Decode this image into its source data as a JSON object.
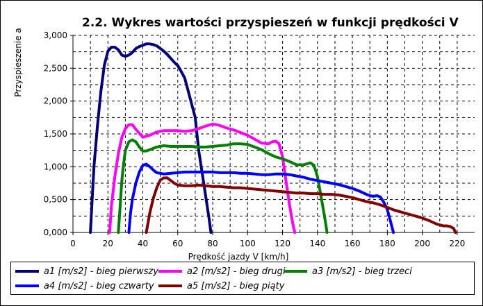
{
  "chart_data": {
    "type": "line",
    "title": "2.2. Wykres wartości przyspieszeń w funkcji prędkości V",
    "ylabel": "Przyspieszenie a",
    "xlabel": "Prędkość jazdy V [km/h]",
    "xlim": [
      0,
      230
    ],
    "ylim": [
      0,
      3
    ],
    "xticks": [
      0,
      20,
      40,
      60,
      80,
      100,
      120,
      140,
      160,
      180,
      200,
      220
    ],
    "yticks": [
      0,
      0.5,
      1,
      1.5,
      2,
      2.5,
      3
    ],
    "xtick_labels": [
      "0",
      "20",
      "40",
      "60",
      "80",
      "100",
      "120",
      "140",
      "160",
      "180",
      "200",
      "220"
    ],
    "ytick_labels": [
      "0,000",
      "0,500",
      "1,000",
      "1,500",
      "2,000",
      "2,500",
      "3,000"
    ],
    "grid": true,
    "legend_position": "bottom",
    "series": [
      {
        "name": "a1 [m/s2] - bieg pierwszy",
        "color": "#000080",
        "x": [
          10,
          11,
          12,
          14,
          16,
          18,
          20,
          22,
          24,
          26,
          28,
          30,
          32,
          34,
          36,
          38,
          40,
          42,
          44,
          46,
          48,
          50,
          52,
          54,
          56,
          58,
          60,
          62,
          64,
          66,
          68,
          70,
          71,
          72,
          74,
          76,
          78,
          79
        ],
        "y": [
          0,
          0.5,
          1.0,
          1.62,
          2.15,
          2.55,
          2.76,
          2.82,
          2.82,
          2.78,
          2.7,
          2.68,
          2.7,
          2.74,
          2.8,
          2.83,
          2.85,
          2.87,
          2.87,
          2.86,
          2.84,
          2.8,
          2.76,
          2.71,
          2.65,
          2.59,
          2.54,
          2.45,
          2.35,
          2.15,
          1.95,
          1.75,
          1.5,
          1.25,
          0.9,
          0.55,
          0.2,
          0
        ]
      },
      {
        "name": "a2 [m/s2] - bieg drugi",
        "color": "#ff00ff",
        "x": [
          21,
          22,
          24,
          26,
          28,
          30,
          32,
          34,
          36,
          40,
          44,
          48,
          52,
          56,
          60,
          64,
          68,
          72,
          76,
          80,
          84,
          88,
          92,
          96,
          100,
          104,
          108,
          112,
          114,
          116,
          118,
          120,
          122,
          124,
          126,
          127
        ],
        "y": [
          0,
          0.4,
          0.85,
          1.2,
          1.45,
          1.58,
          1.64,
          1.64,
          1.57,
          1.45,
          1.48,
          1.53,
          1.55,
          1.55,
          1.55,
          1.54,
          1.55,
          1.58,
          1.62,
          1.65,
          1.63,
          1.59,
          1.56,
          1.52,
          1.48,
          1.42,
          1.36,
          1.35,
          1.38,
          1.39,
          1.35,
          1.15,
          0.78,
          0.42,
          0.12,
          0
        ]
      },
      {
        "name": "a3 [m/s2] - bieg trzeci",
        "color": "#008000",
        "x": [
          26,
          27,
          28,
          29,
          30,
          32,
          34,
          36,
          38,
          40,
          42,
          44,
          48,
          52,
          56,
          60,
          64,
          68,
          72,
          76,
          80,
          84,
          88,
          92,
          96,
          100,
          104,
          108,
          112,
          116,
          120,
          124,
          128,
          132,
          136,
          138,
          140,
          142,
          144,
          145.5
        ],
        "y": [
          0,
          0.4,
          0.8,
          1.05,
          1.25,
          1.38,
          1.41,
          1.38,
          1.3,
          1.24,
          1.24,
          1.26,
          1.3,
          1.32,
          1.31,
          1.31,
          1.31,
          1.31,
          1.3,
          1.3,
          1.31,
          1.32,
          1.33,
          1.35,
          1.35,
          1.34,
          1.3,
          1.26,
          1.2,
          1.15,
          1.12,
          1.08,
          1.03,
          1.03,
          1.06,
          1.02,
          0.85,
          0.55,
          0.25,
          0
        ]
      },
      {
        "name": "a4 [m/s2] - bieg czwarty",
        "color": "#0000ff",
        "x": [
          32,
          33,
          34,
          36,
          38,
          40,
          42,
          44,
          46,
          48,
          52,
          56,
          60,
          64,
          68,
          72,
          76,
          80,
          84,
          88,
          92,
          96,
          100,
          104,
          108,
          112,
          116,
          120,
          124,
          128,
          132,
          136,
          140,
          144,
          148,
          152,
          156,
          160,
          164,
          168,
          170,
          172,
          174,
          176,
          178,
          180,
          182,
          183.5
        ],
        "y": [
          0,
          0.3,
          0.5,
          0.75,
          0.92,
          1.02,
          1.04,
          1.0,
          0.95,
          0.91,
          0.89,
          0.9,
          0.91,
          0.92,
          0.92,
          0.92,
          0.92,
          0.92,
          0.91,
          0.91,
          0.91,
          0.9,
          0.9,
          0.89,
          0.88,
          0.88,
          0.89,
          0.89,
          0.88,
          0.86,
          0.84,
          0.81,
          0.79,
          0.77,
          0.75,
          0.73,
          0.7,
          0.67,
          0.63,
          0.58,
          0.56,
          0.55,
          0.56,
          0.54,
          0.46,
          0.35,
          0.15,
          0
        ]
      },
      {
        "name": "a5 [m/s2] - bieg piąty",
        "color": "#800000",
        "x": [
          42,
          43,
          44,
          46,
          48,
          50,
          52,
          54,
          56,
          58,
          60,
          64,
          68,
          72,
          76,
          80,
          84,
          88,
          92,
          96,
          100,
          104,
          108,
          112,
          116,
          120,
          124,
          128,
          132,
          136,
          140,
          144,
          148,
          152,
          156,
          160,
          164,
          168,
          172,
          176,
          180,
          184,
          188,
          192,
          196,
          200,
          204,
          208,
          212,
          214,
          216,
          218,
          219
        ],
        "y": [
          0,
          0.15,
          0.3,
          0.52,
          0.68,
          0.8,
          0.83,
          0.83,
          0.79,
          0.75,
          0.72,
          0.71,
          0.71,
          0.72,
          0.71,
          0.7,
          0.7,
          0.69,
          0.68,
          0.68,
          0.67,
          0.66,
          0.65,
          0.64,
          0.63,
          0.62,
          0.61,
          0.6,
          0.6,
          0.59,
          0.59,
          0.58,
          0.58,
          0.57,
          0.55,
          0.53,
          0.5,
          0.47,
          0.45,
          0.42,
          0.38,
          0.34,
          0.31,
          0.28,
          0.25,
          0.22,
          0.18,
          0.13,
          0.1,
          0.1,
          0.09,
          0.06,
          0
        ]
      }
    ]
  }
}
